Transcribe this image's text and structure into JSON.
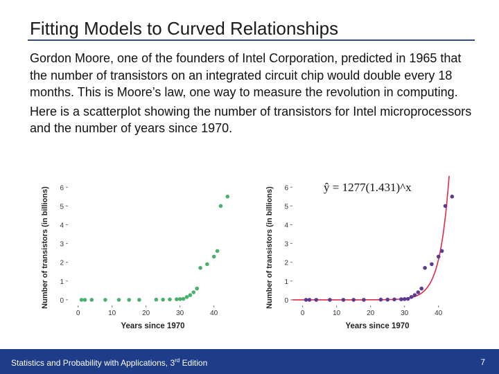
{
  "slide": {
    "title": "Fitting Models to Curved Relationships",
    "paragraphs": [
      "Gordon Moore, one of the founders of Intel Corporation, predicted in 1965 that the number of transistors on an integrated circuit chip would double every 18 months. This is Moore’s law, one way to measure the revolution in computing.",
      "Here is a scatterplot showing the number of transistors for Intel microprocessors and the number of years since 1970."
    ]
  },
  "footer": {
    "text_before_sup": "Statistics and Probability with Applications, 3",
    "sup": "rd",
    "text_after_sup": " Edition",
    "page_number": "7"
  },
  "colors": {
    "accent": "#1f3c88",
    "scatter_green": "#4caf6e",
    "scatter_purple": "#5b3a8f",
    "fit_curve": "#e3264c"
  },
  "chart_data": [
    {
      "type": "scatter",
      "xlabel": "Years since 1970",
      "ylabel": "Number of transistors (in billions)",
      "xlim": [
        -3,
        47
      ],
      "ylim": [
        -0.3,
        6.6
      ],
      "xticks": [
        0,
        10,
        20,
        30,
        40
      ],
      "yticks": [
        0,
        1,
        2,
        3,
        4,
        5,
        6
      ],
      "grid": false,
      "points": [
        [
          1,
          0
        ],
        [
          2,
          0
        ],
        [
          4,
          0
        ],
        [
          8,
          0
        ],
        [
          12,
          0
        ],
        [
          15,
          0
        ],
        [
          18,
          0
        ],
        [
          23,
          0.01
        ],
        [
          25,
          0.01
        ],
        [
          27,
          0.02
        ],
        [
          29,
          0.03
        ],
        [
          30,
          0.04
        ],
        [
          31,
          0.05
        ],
        [
          32,
          0.15
        ],
        [
          33,
          0.25
        ],
        [
          34,
          0.4
        ],
        [
          35,
          0.6
        ],
        [
          36,
          1.7
        ],
        [
          38,
          1.9
        ],
        [
          40,
          2.3
        ],
        [
          41,
          2.6
        ],
        [
          42,
          5.0
        ],
        [
          44,
          5.5
        ]
      ]
    },
    {
      "type": "scatter",
      "xlabel": "Years since 1970",
      "ylabel": "Number of transistors (in billions)",
      "equation": "ŷ = 1277(1.431)^x",
      "xlim": [
        -3,
        47
      ],
      "ylim": [
        -0.3,
        6.6
      ],
      "xticks": [
        0,
        10,
        20,
        30,
        40
      ],
      "yticks": [
        0,
        1,
        2,
        3,
        4,
        5,
        6
      ],
      "grid": false,
      "points": [
        [
          1,
          0
        ],
        [
          2,
          0
        ],
        [
          4,
          0
        ],
        [
          8,
          0
        ],
        [
          12,
          0
        ],
        [
          15,
          0
        ],
        [
          18,
          0
        ],
        [
          23,
          0.01
        ],
        [
          25,
          0.01
        ],
        [
          27,
          0.02
        ],
        [
          29,
          0.03
        ],
        [
          30,
          0.04
        ],
        [
          31,
          0.05
        ],
        [
          32,
          0.15
        ],
        [
          33,
          0.25
        ],
        [
          34,
          0.4
        ],
        [
          35,
          0.6
        ],
        [
          36,
          1.7
        ],
        [
          38,
          1.9
        ],
        [
          40,
          2.3
        ],
        [
          41,
          2.6
        ],
        [
          42,
          5.0
        ],
        [
          44,
          5.5
        ]
      ],
      "fit": {
        "a": 1277,
        "b": 1.431,
        "units_scale": 1e-09
      }
    }
  ]
}
